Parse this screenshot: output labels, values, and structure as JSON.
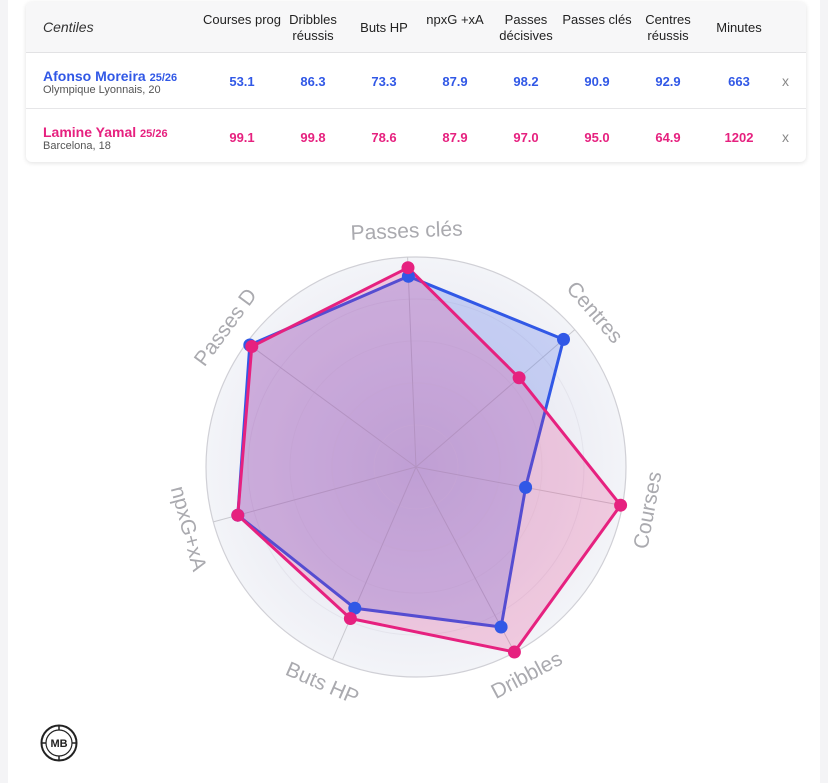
{
  "table": {
    "title": "Centiles",
    "columns": [
      "Courses prog",
      "Dribbles réussis",
      "Buts HP",
      "npxG +xA",
      "Passes décisives",
      "Passes clés",
      "Centres réussis",
      "Minutes"
    ],
    "players": [
      {
        "name": "Afonso Moreira",
        "season": "25/26",
        "club": "Olympique Lyonnais, 20",
        "values": [
          "53.1",
          "86.3",
          "73.3",
          "87.9",
          "98.2",
          "90.9",
          "92.9",
          "663"
        ],
        "remove": "x",
        "color": "#3158e6"
      },
      {
        "name": "Lamine Yamal",
        "season": "25/26",
        "club": "Barcelona, 18",
        "values": [
          "99.1",
          "99.8",
          "78.6",
          "87.9",
          "97.0",
          "95.0",
          "64.9",
          "1202"
        ],
        "remove": "x",
        "color": "#e6217f"
      }
    ]
  },
  "chart_data": {
    "type": "radar",
    "axes": [
      "Passes clés",
      "Centres",
      "Courses",
      "Dribbles",
      "Buts HP",
      "npxG+xA",
      "Passes D"
    ],
    "range": [
      0,
      100
    ],
    "series": [
      {
        "name": "Afonso Moreira",
        "values": [
          90.9,
          92.9,
          53.1,
          86.3,
          73.3,
          87.9,
          98.2
        ],
        "color": "#3158e6"
      },
      {
        "name": "Lamine Yamal",
        "values": [
          95.0,
          64.9,
          99.1,
          99.8,
          78.6,
          87.9,
          97.0
        ],
        "color": "#e6217f"
      }
    ]
  },
  "logo": {
    "text": "MB",
    "icon": "mb-logo-icon"
  }
}
